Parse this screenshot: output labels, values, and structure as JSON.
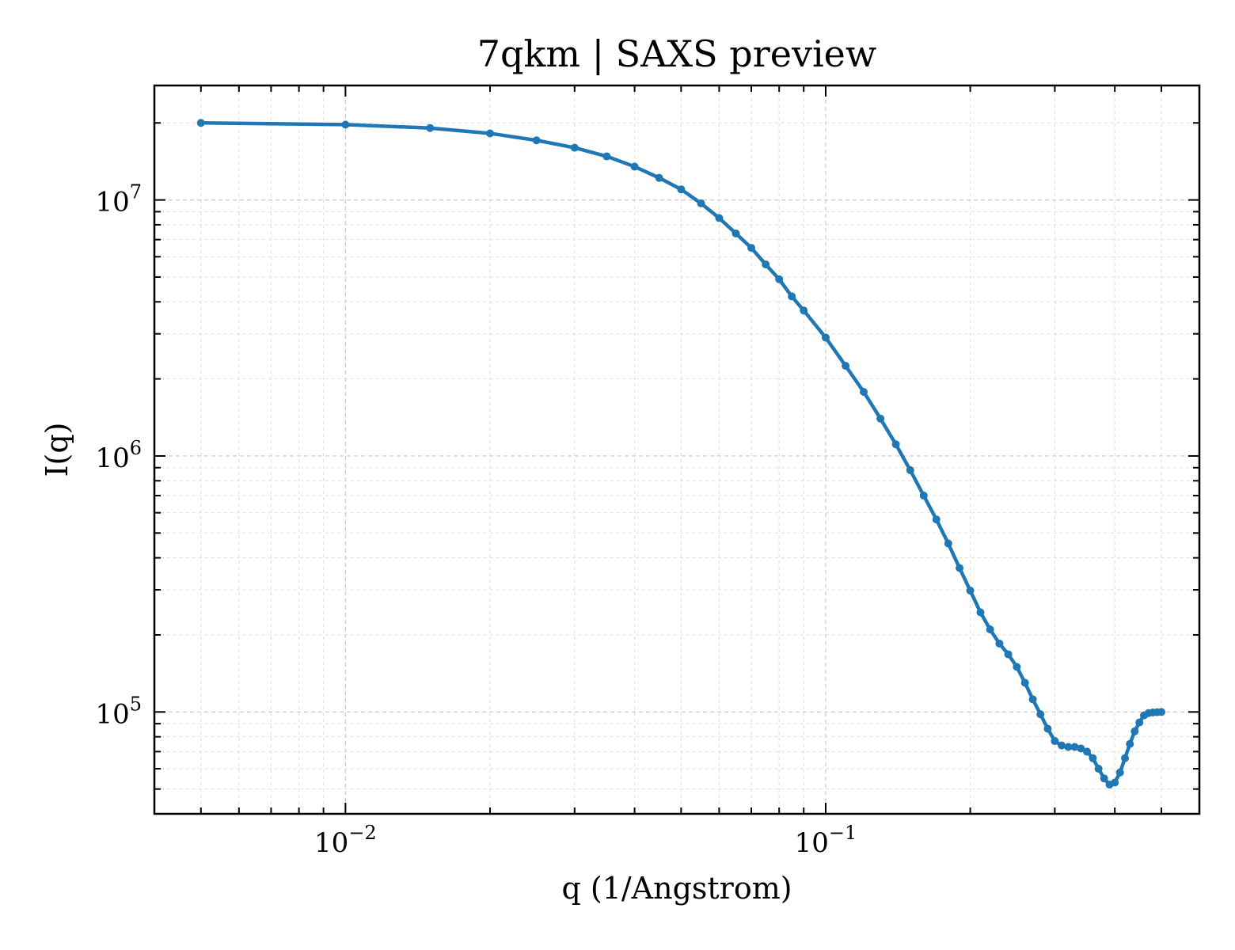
{
  "chart_data": {
    "type": "line",
    "title": "7qkm | SAXS preview",
    "xlabel": "q (1/Angstrom)",
    "ylabel": "I(q)",
    "xscale": "log",
    "yscale": "log",
    "xlim": [
      0.004,
      0.6
    ],
    "ylim": [
      40000,
      28000000
    ],
    "grid": true,
    "legend": "none",
    "color": "#1f77b4",
    "x_ticks": [
      {
        "value": 0.01,
        "base": "10",
        "exp": "−2"
      },
      {
        "value": 0.1,
        "base": "10",
        "exp": "−1"
      }
    ],
    "y_ticks": [
      {
        "value": 100000,
        "base": "10",
        "exp": "5"
      },
      {
        "value": 1000000,
        "base": "10",
        "exp": "6"
      },
      {
        "value": 10000000,
        "base": "10",
        "exp": "7"
      }
    ],
    "series": [
      {
        "x": [
          0.005,
          0.01,
          0.015,
          0.02,
          0.025,
          0.03,
          0.035,
          0.04,
          0.045,
          0.05,
          0.055,
          0.06,
          0.065,
          0.07,
          0.075,
          0.08,
          0.085,
          0.09,
          0.1,
          0.11,
          0.12,
          0.13,
          0.14,
          0.15,
          0.16,
          0.17,
          0.18,
          0.19,
          0.2,
          0.21,
          0.22,
          0.23,
          0.24,
          0.25,
          0.26,
          0.27,
          0.28,
          0.29,
          0.3,
          0.31,
          0.32,
          0.33,
          0.34,
          0.35,
          0.36,
          0.37,
          0.38,
          0.39,
          0.4,
          0.41,
          0.42,
          0.43,
          0.44,
          0.45,
          0.46,
          0.47,
          0.48,
          0.49,
          0.5
        ],
        "y": [
          20000000,
          19700000,
          19100000,
          18200000,
          17100000,
          16000000,
          14800000,
          13500000,
          12200000,
          11000000,
          9700000,
          8500000,
          7400000,
          6500000,
          5600000,
          4900000,
          4200000,
          3700000,
          2900000,
          2250000,
          1780000,
          1400000,
          1110000,
          880000,
          700000,
          565000,
          455000,
          365000,
          298000,
          245000,
          210000,
          185000,
          168000,
          150000,
          130000,
          112000,
          98000,
          86000,
          77000,
          74000,
          73000,
          73000,
          72000,
          70000,
          66000,
          60000,
          55000,
          52000,
          53000,
          58000,
          66000,
          75000,
          84000,
          91000,
          97000,
          99000,
          99500,
          99800,
          100000
        ]
      }
    ]
  }
}
